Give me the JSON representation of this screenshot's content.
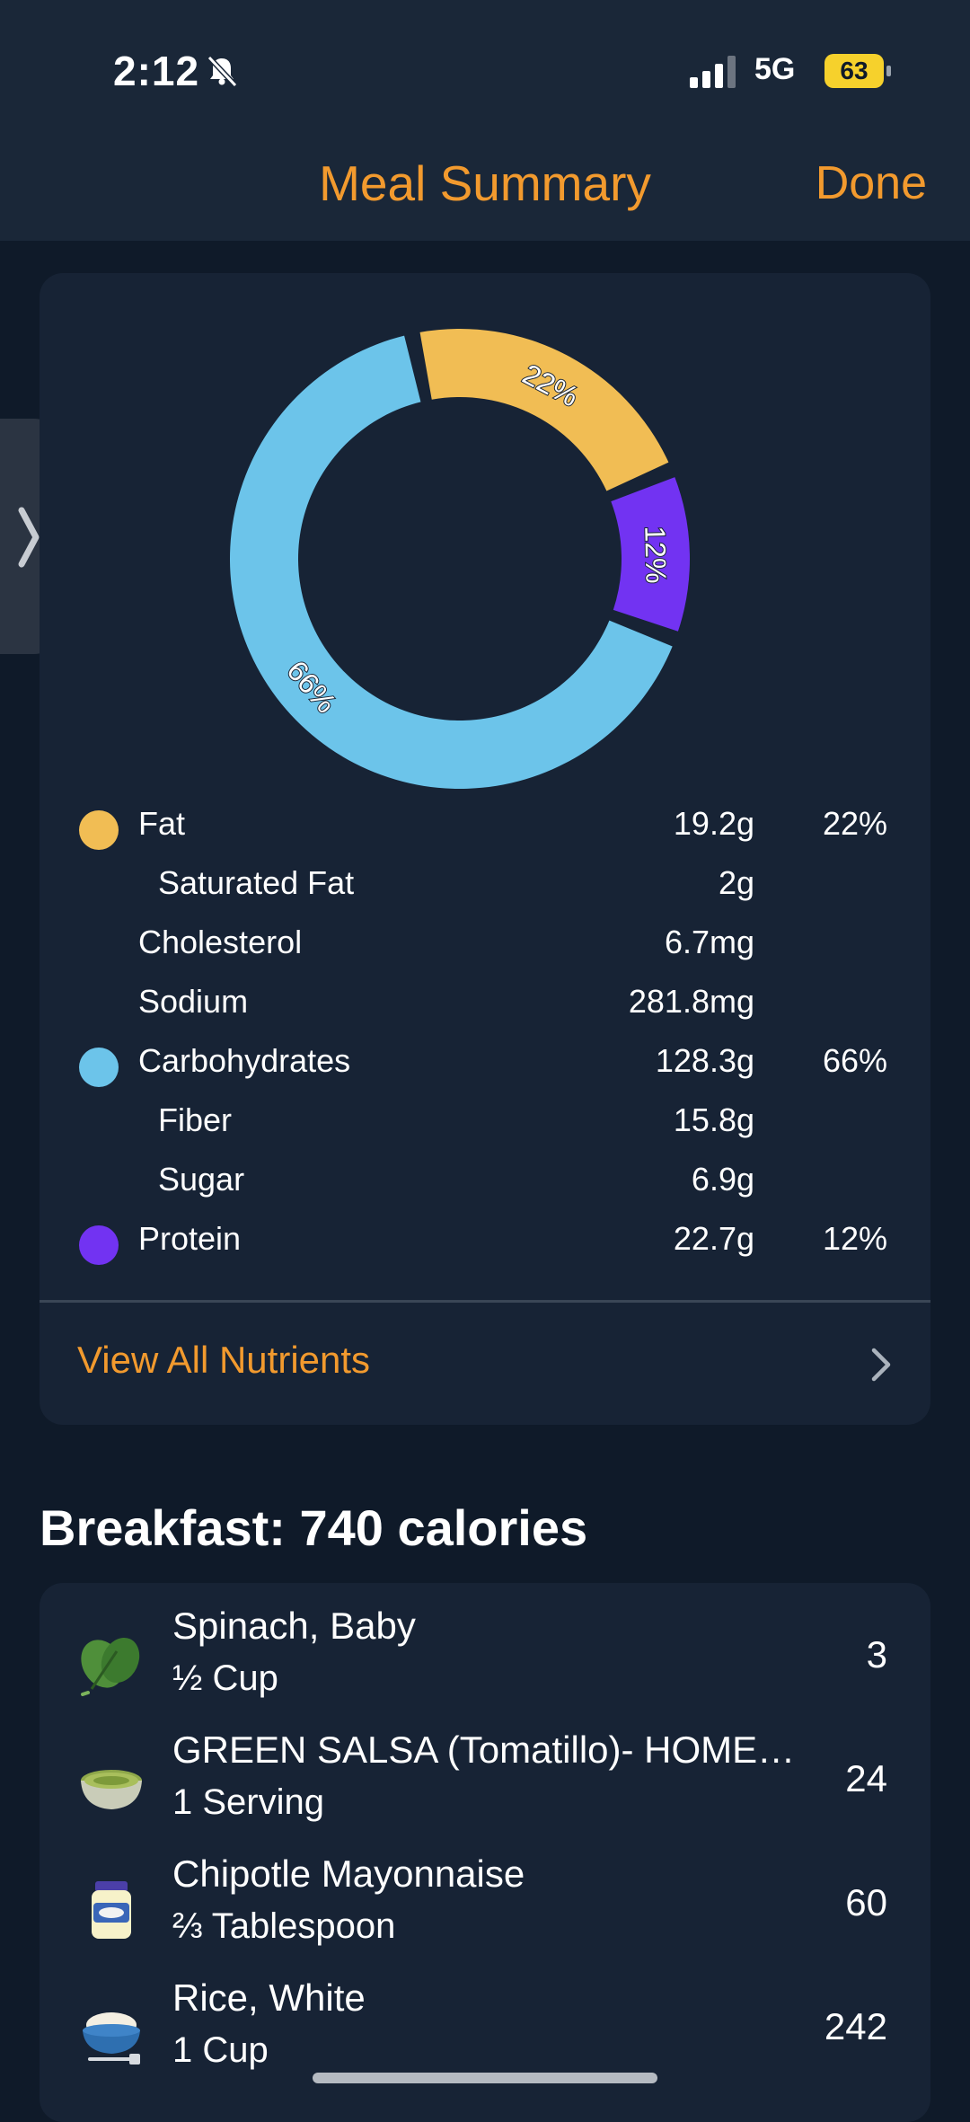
{
  "status_bar": {
    "time": "2:12",
    "network": "5G",
    "battery": "63"
  },
  "nav": {
    "title": "Meal Summary",
    "done_label": "Done"
  },
  "chart_data": {
    "type": "pie",
    "style": "donut",
    "slices": [
      {
        "name": "Fat",
        "percent": 22,
        "label": "22%",
        "color": "#f1bd54"
      },
      {
        "name": "Protein",
        "percent": 12,
        "label": "12%",
        "color": "#7233f2"
      },
      {
        "name": "Carbohydrates",
        "percent": 66,
        "label": "66%",
        "color": "#6cc4ea"
      }
    ]
  },
  "macros": [
    {
      "label": "Fat",
      "amount": "19.2g",
      "percent": "22%",
      "color": "#f1bd54",
      "indent": 0
    },
    {
      "label": "Saturated Fat",
      "amount": "2g",
      "percent": "",
      "color": "",
      "indent": 1
    },
    {
      "label": "Cholesterol",
      "amount": "6.7mg",
      "percent": "",
      "color": "",
      "indent": 0
    },
    {
      "label": "Sodium",
      "amount": "281.8mg",
      "percent": "",
      "color": "",
      "indent": 0
    },
    {
      "label": "Carbohydrates",
      "amount": "128.3g",
      "percent": "66%",
      "color": "#6cc4ea",
      "indent": 0
    },
    {
      "label": "Fiber",
      "amount": "15.8g",
      "percent": "",
      "color": "",
      "indent": 1
    },
    {
      "label": "Sugar",
      "amount": "6.9g",
      "percent": "",
      "color": "",
      "indent": 1
    },
    {
      "label": "Protein",
      "amount": "22.7g",
      "percent": "12%",
      "color": "#7233f2",
      "indent": 0
    }
  ],
  "view_all_label": "View All Nutrients",
  "meal": {
    "title": "Breakfast: 740 calories",
    "items": [
      {
        "name": "Spinach, Baby",
        "serving": "½ Cup",
        "calories": "3",
        "icon": "spinach-icon"
      },
      {
        "name": "GREEN SALSA (Tomatillo)- HOME…",
        "serving": "1 Serving",
        "calories": "24",
        "icon": "salsa-bowl-icon"
      },
      {
        "name": "Chipotle Mayonnaise",
        "serving": "⅔ Tablespoon",
        "calories": "60",
        "icon": "mayonnaise-jar-icon"
      },
      {
        "name": "Rice, White",
        "serving": "1 Cup",
        "calories": "242",
        "icon": "rice-bowl-icon"
      }
    ]
  }
}
